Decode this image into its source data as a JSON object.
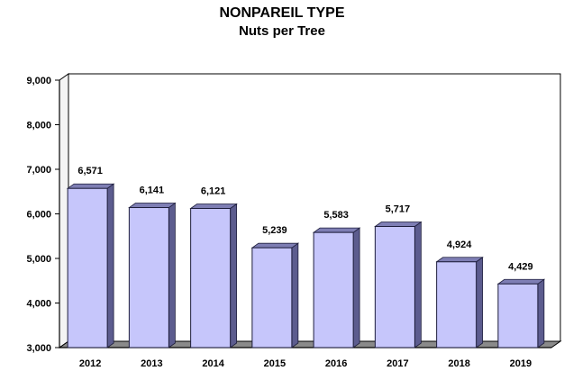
{
  "chart_data": {
    "type": "bar",
    "title": "NONPAREIL TYPE",
    "subtitle": "Nuts per Tree",
    "xlabel": "",
    "ylabel": "",
    "categories": [
      "2012",
      "2013",
      "2014",
      "2015",
      "2016",
      "2017",
      "2018",
      "2019"
    ],
    "values": [
      6571,
      6141,
      6121,
      5239,
      5583,
      5717,
      4924,
      4429
    ],
    "value_labels": [
      "6,571",
      "6,141",
      "6,121",
      "5,239",
      "5,583",
      "5,717",
      "4,924",
      "4,429"
    ],
    "ylim": [
      3000,
      9000
    ],
    "yticks": [
      3000,
      4000,
      5000,
      6000,
      7000,
      8000,
      9000
    ],
    "ytick_labels": [
      "3,000",
      "4,000",
      "5,000",
      "6,000",
      "7,000",
      "8,000",
      "9,000"
    ],
    "grid": false,
    "legend": "none",
    "style": "3d",
    "colors": {
      "bar_front": "#c6c6fb",
      "bar_side": "#5c5c8e",
      "bar_top": "#7e7eb4",
      "bar_edge": "#1e1e3c",
      "floor": "#8a8a8a",
      "wall": "#ffffff",
      "axis": "#000000"
    }
  }
}
